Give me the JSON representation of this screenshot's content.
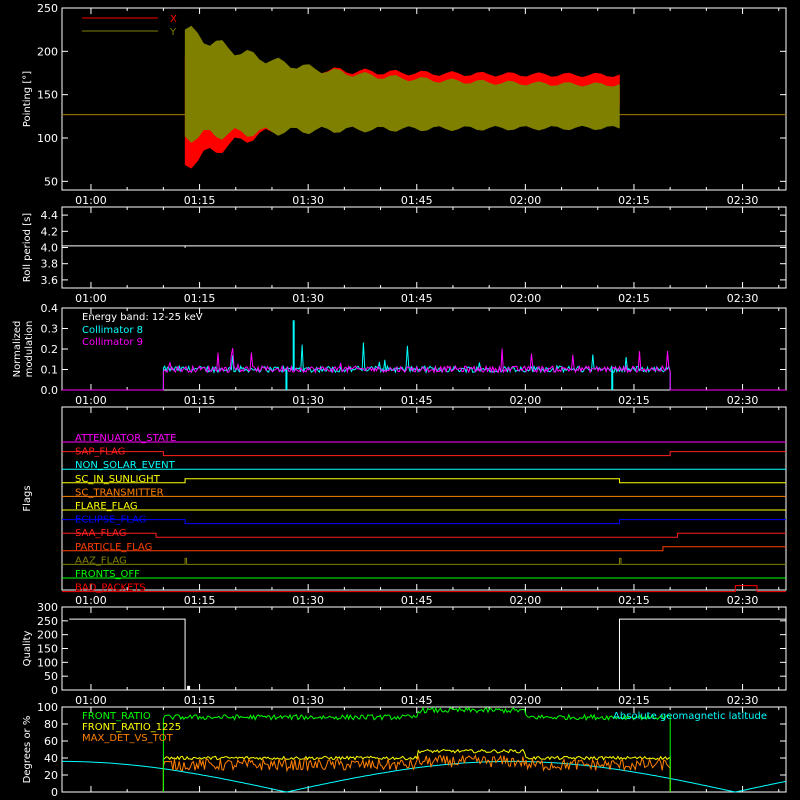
{
  "chart_data": [
    {
      "type": "line",
      "ylabel": "Pointing [°]",
      "ylim": [
        40,
        250
      ],
      "yticks": [
        50,
        100,
        150,
        200,
        250
      ],
      "x_ticks": [
        "01:00",
        "01:15",
        "01:30",
        "01:45",
        "02:00",
        "02:15",
        "02:30"
      ],
      "series": [
        {
          "name": "X",
          "color": "#ff0000",
          "envelope_start": [
            69,
            195
          ],
          "envelope_end": [
            139,
            172
          ],
          "before": 127,
          "after": 127,
          "start": "01:13",
          "end": "02:13"
        },
        {
          "name": "Y",
          "color": "#808000",
          "envelope_start": [
            102,
            225
          ],
          "envelope_end": [
            112,
            160
          ],
          "before": 127,
          "after": 127,
          "start": "01:13",
          "end": "02:13"
        }
      ]
    },
    {
      "type": "line",
      "ylabel": "Roll period [s]",
      "ylim": [
        3.5,
        4.5
      ],
      "yticks": [
        3.6,
        3.8,
        4.0,
        4.2,
        4.4
      ],
      "x_ticks": [
        "01:00",
        "01:15",
        "01:30",
        "01:45",
        "02:00",
        "02:15",
        "02:30"
      ],
      "series": [
        {
          "name": "",
          "color": "#ffffff",
          "value": 4.02
        }
      ]
    },
    {
      "type": "line",
      "ylabel": "Normalized modulation",
      "ylim": [
        0,
        0.4
      ],
      "yticks": [
        0.0,
        0.1,
        0.2,
        0.3,
        0.4
      ],
      "x_ticks": [
        "01:00",
        "01:15",
        "01:30",
        "01:45",
        "02:00",
        "02:15",
        "02:30"
      ],
      "annotation": "Energy band: 12-25 keV",
      "series": [
        {
          "name": "Collimator 8",
          "color": "#00ffff",
          "baseline": 0.1,
          "start": "01:10",
          "end": "02:20"
        },
        {
          "name": "Collimator 9",
          "color": "#ff00ff",
          "baseline": 0.1,
          "start": "01:10",
          "end": "02:20"
        }
      ]
    },
    {
      "type": "line",
      "ylabel": "Flags",
      "x_ticks": [
        "01:00",
        "01:15",
        "01:30",
        "01:45",
        "02:00",
        "02:15",
        "02:30"
      ],
      "flags": [
        {
          "name": "ATTENUATOR_STATE",
          "color": "#ff00ff",
          "steps": []
        },
        {
          "name": "SAP_FLAG",
          "color": "#ff2020",
          "steps": [
            "01:10",
            "02:20"
          ]
        },
        {
          "name": "NON_SOLAR_EVENT",
          "color": "#00ffff",
          "steps": []
        },
        {
          "name": "SC_IN_SUNLIGHT",
          "color": "#ffff00",
          "steps": [
            "01:13",
            "02:13"
          ]
        },
        {
          "name": "SC_TRANSMITTER",
          "color": "#ff8000",
          "steps": []
        },
        {
          "name": "FLARE_FLAG",
          "color": "#ffff00",
          "steps": []
        },
        {
          "name": "ECLIPSE_FLAG",
          "color": "#0000ff",
          "steps": [
            "01:13",
            "02:13"
          ]
        },
        {
          "name": "SAA_FLAG",
          "color": "#ff2020",
          "steps": [
            "01:09",
            "02:21"
          ]
        },
        {
          "name": "PARTICLE_FLAG",
          "color": "#ff4000",
          "steps": [
            "02:19"
          ]
        },
        {
          "name": "AAZ_FLAG",
          "color": "#808000",
          "spikes": [
            "01:13",
            "02:13"
          ]
        },
        {
          "name": "FRONTS_OFF",
          "color": "#00ff00",
          "steps": []
        },
        {
          "name": "BAD_PACKETS",
          "color": "#ff0000",
          "pulse": [
            "02:29",
            "02:32"
          ]
        }
      ]
    },
    {
      "type": "line",
      "ylabel": "Quality",
      "ylim": [
        0,
        300
      ],
      "yticks": [
        0,
        50,
        100,
        150,
        200,
        250,
        300
      ],
      "x_ticks": [
        "01:00",
        "01:15",
        "01:30",
        "01:45",
        "02:00",
        "02:15",
        "02:30"
      ],
      "series": [
        {
          "name": "",
          "color": "#ffffff",
          "high": 256,
          "low": 0,
          "segments": [
            [
              "00:57",
              "01:13",
              256
            ],
            [
              "01:13",
              "02:13",
              0
            ],
            [
              "02:13",
              "02:36",
              256
            ]
          ]
        }
      ]
    },
    {
      "type": "line",
      "ylabel": "Degrees or %",
      "ylim": [
        0,
        100
      ],
      "yticks": [
        0,
        20,
        40,
        60,
        80,
        100
      ],
      "x_ticks": [],
      "series": [
        {
          "name": "FRONT_RATIO",
          "color": "#00ff00",
          "level": 88
        },
        {
          "name": "FRONT_RATIO_1225",
          "color": "#ffff00",
          "level": 40
        },
        {
          "name": "MAX_DET_VS_TOT",
          "color": "#ff8000",
          "level": 32
        },
        {
          "name": "Absolute geomagnetic latitude",
          "color": "#00ffff",
          "min": 0,
          "max": 36
        }
      ]
    }
  ]
}
